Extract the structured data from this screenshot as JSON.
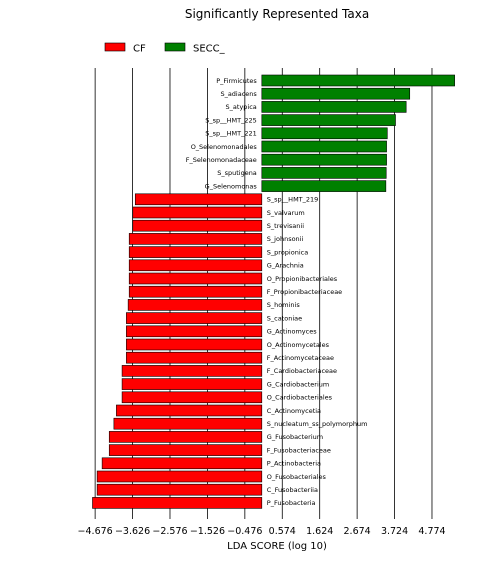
{
  "chart_data": {
    "type": "bar",
    "orientation": "horizontal",
    "title": "Significantly Represented Taxa",
    "xlabel": "LDA SCORE (log 10)",
    "ylabel": "",
    "xlim": [
      -4.82,
      5.56
    ],
    "xticks": [
      -4.676,
      -3.626,
      -2.576,
      -1.526,
      -0.476,
      0.574,
      1.624,
      2.674,
      3.724,
      4.774
    ],
    "xtick_labels": [
      "−4.676",
      "−3.626",
      "−2.576",
      "−1.526",
      "−0.476",
      "0.574",
      "1.624",
      "2.674",
      "3.724",
      "4.774"
    ],
    "grid": "vertical lines at x ticks",
    "legend": {
      "placement": "top-left",
      "entries": [
        {
          "label": "CF",
          "color": "#ff0000"
        },
        {
          "label": "SECC_",
          "color": "#008000"
        }
      ]
    },
    "series_colors": {
      "CF": "#ff0000",
      "SECC_": "#008000"
    },
    "bars": [
      {
        "label": "P_Firmicutes",
        "value": 5.41,
        "group": "SECC_"
      },
      {
        "label": "S_adiacens",
        "value": 4.15,
        "group": "SECC_"
      },
      {
        "label": "S_atypica",
        "value": 4.05,
        "group": "SECC_"
      },
      {
        "label": "S_sp__HMT_225",
        "value": 3.75,
        "group": "SECC_"
      },
      {
        "label": "S_sp__HMT_221",
        "value": 3.52,
        "group": "SECC_"
      },
      {
        "label": "O_Selenomonadales",
        "value": 3.5,
        "group": "SECC_"
      },
      {
        "label": "F_Selenomonadaceae",
        "value": 3.5,
        "group": "SECC_"
      },
      {
        "label": "S_sputigena",
        "value": 3.49,
        "group": "SECC_"
      },
      {
        "label": "G_Selenomonas",
        "value": 3.48,
        "group": "SECC_"
      },
      {
        "label": "S_sp__HMT_219",
        "value": -3.55,
        "group": "CF"
      },
      {
        "label": "S_valvarum",
        "value": -3.62,
        "group": "CF"
      },
      {
        "label": "S_trevisanii",
        "value": -3.62,
        "group": "CF"
      },
      {
        "label": "S_johnsonii",
        "value": -3.72,
        "group": "CF"
      },
      {
        "label": "S_propionica",
        "value": -3.72,
        "group": "CF"
      },
      {
        "label": "G_Arachnia",
        "value": -3.72,
        "group": "CF"
      },
      {
        "label": "O_Propionibacteriales",
        "value": -3.72,
        "group": "CF"
      },
      {
        "label": "F_Propionibacteriaceae",
        "value": -3.72,
        "group": "CF"
      },
      {
        "label": "S_hominis",
        "value": -3.75,
        "group": "CF"
      },
      {
        "label": "S_catoniae",
        "value": -3.8,
        "group": "CF"
      },
      {
        "label": "G_Actinomyces",
        "value": -3.8,
        "group": "CF"
      },
      {
        "label": "O_Actinomycetales",
        "value": -3.8,
        "group": "CF"
      },
      {
        "label": "F_Actinomycetaceae",
        "value": -3.8,
        "group": "CF"
      },
      {
        "label": "F_Cardiobacteriaceae",
        "value": -3.92,
        "group": "CF"
      },
      {
        "label": "G_Cardiobacterium",
        "value": -3.92,
        "group": "CF"
      },
      {
        "label": "O_Cardiobacteriales",
        "value": -3.92,
        "group": "CF"
      },
      {
        "label": "C_Actinomycetia",
        "value": -4.08,
        "group": "CF"
      },
      {
        "label": "S_nucleatum_ss_polymorphum",
        "value": -4.15,
        "group": "CF"
      },
      {
        "label": "G_Fusobacterium",
        "value": -4.28,
        "group": "CF"
      },
      {
        "label": "F_Fusobacteriaceae",
        "value": -4.28,
        "group": "CF"
      },
      {
        "label": "P_Actinobacteria",
        "value": -4.48,
        "group": "CF"
      },
      {
        "label": "O_Fusobacteriales",
        "value": -4.62,
        "group": "CF"
      },
      {
        "label": "C_Fusobacteriia",
        "value": -4.62,
        "group": "CF"
      },
      {
        "label": "P_Fusobacteria",
        "value": -4.75,
        "group": "CF"
      }
    ]
  }
}
